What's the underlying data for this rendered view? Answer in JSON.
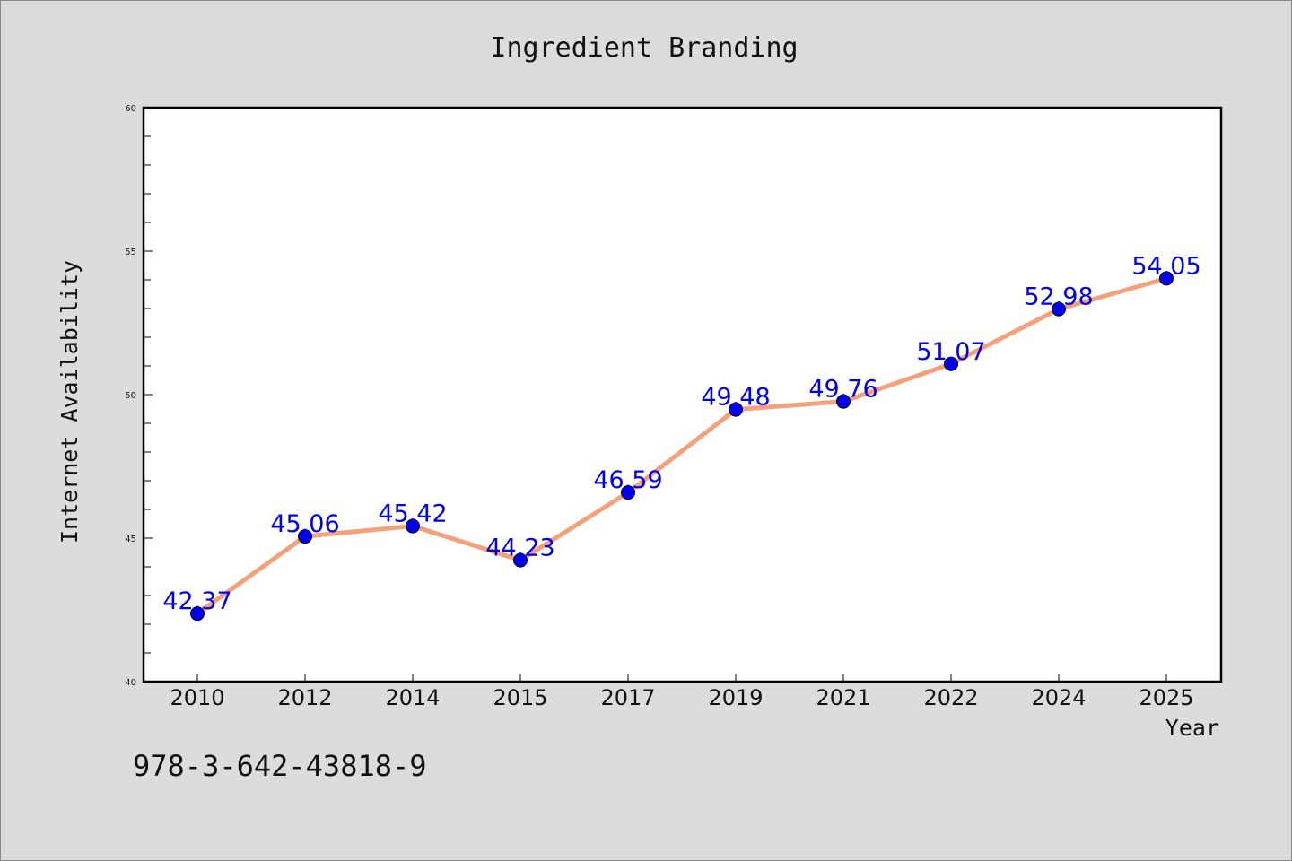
{
  "chart_data": {
    "type": "line",
    "title": "Ingredient Branding",
    "xlabel": "Year",
    "ylabel": "Internet Availability",
    "categories": [
      "2010",
      "2012",
      "2014",
      "2015",
      "2017",
      "2019",
      "2021",
      "2022",
      "2024",
      "2025"
    ],
    "series": [
      {
        "values": [
          42.37,
          45.06,
          45.42,
          44.23,
          46.59,
          49.48,
          49.76,
          51.07,
          52.98,
          54.05
        ],
        "data_labels": [
          "42.37",
          "45.06",
          "45.42",
          "44.23",
          "46.59",
          "49.48",
          "49.76",
          "51.07",
          "52.98",
          "54.05"
        ],
        "line_color": "#f4a07a",
        "marker_color": "#0000ee",
        "label_color": "#0000ee"
      }
    ],
    "ylim": [
      40,
      60
    ],
    "yticks": [
      "40",
      "45",
      "50",
      "55",
      "60"
    ],
    "grid": false,
    "legend": "none"
  },
  "footer": {
    "identifier": "978-3-642-43818-9"
  }
}
